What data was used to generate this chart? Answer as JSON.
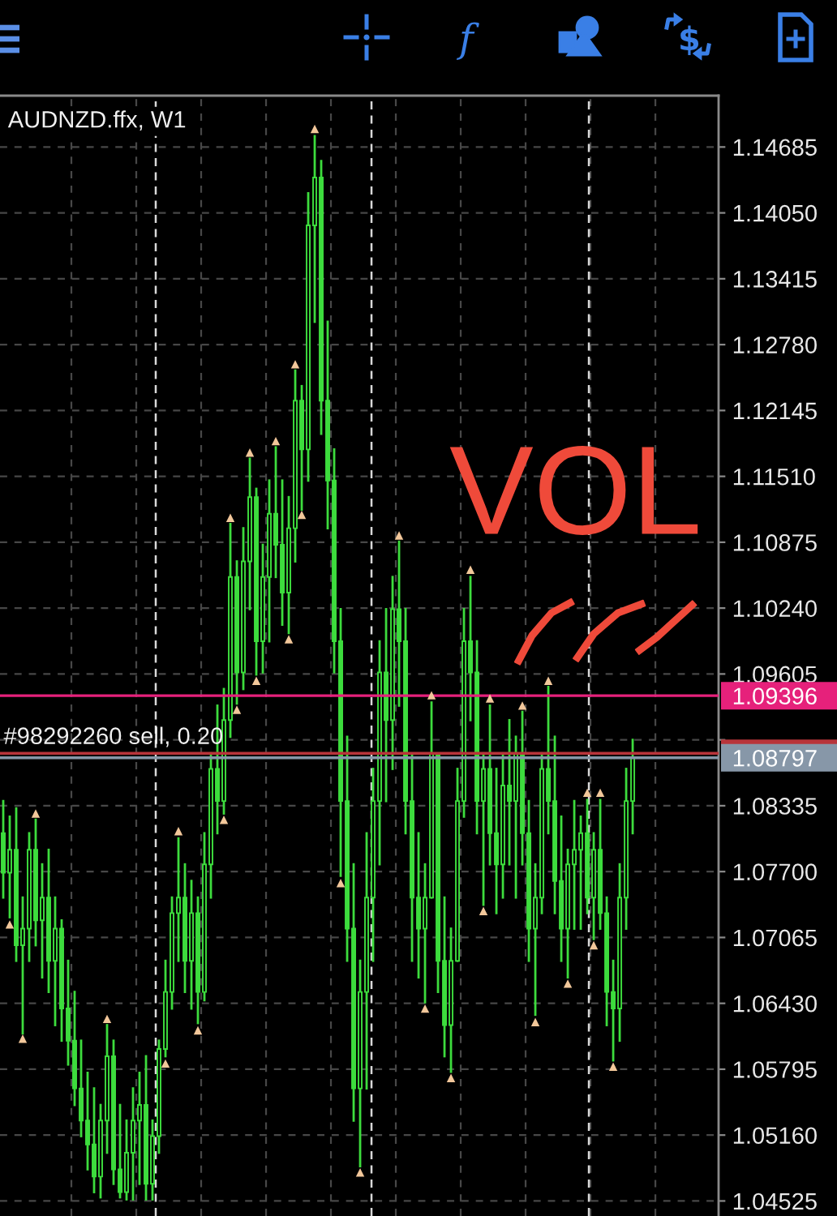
{
  "chart_data": {
    "type": "candlestick",
    "title": "AUDNZD.ffx, W1",
    "annotations": [
      "VOL"
    ],
    "categories": [
      null,
      null,
      null,
      null,
      null,
      null,
      null,
      null,
      null,
      null,
      null,
      null,
      null,
      null,
      null,
      null,
      null,
      null,
      null,
      null,
      null,
      null,
      null,
      null,
      null,
      null,
      null,
      null,
      null,
      null,
      null,
      null,
      null,
      null,
      null,
      null,
      null,
      null,
      null,
      null,
      null,
      null,
      null,
      null,
      null,
      null,
      null,
      null,
      null,
      null,
      null,
      null,
      null,
      null,
      null,
      null,
      null,
      null,
      null,
      null,
      null,
      null,
      null,
      null,
      null,
      null,
      null,
      null,
      null,
      null,
      null,
      null,
      null,
      null,
      null,
      null,
      null,
      null,
      null,
      null,
      null,
      null,
      null,
      null,
      null,
      null,
      null,
      null,
      null,
      null,
      null,
      null,
      null,
      null,
      null,
      null,
      null,
      null
    ],
    "ohlc": [
      [
        1.0807,
        1.0838,
        1.0745,
        1.0769
      ],
      [
        1.0769,
        1.0823,
        1.0726,
        1.0791
      ],
      [
        1.0791,
        1.0831,
        1.0684,
        1.0699
      ],
      [
        1.0699,
        1.0745,
        1.0614,
        1.0715
      ],
      [
        1.0715,
        1.0807,
        1.0684,
        1.0791
      ],
      [
        1.0791,
        1.082,
        1.0699,
        1.0723
      ],
      [
        1.0723,
        1.0777,
        1.0668,
        1.0745
      ],
      [
        1.0745,
        1.0791,
        1.0654,
        1.0684
      ],
      [
        1.0684,
        1.0745,
        1.0622,
        1.0715
      ],
      [
        1.0715,
        1.0723,
        1.0607,
        1.0638
      ],
      [
        1.0638,
        1.0684,
        1.0584,
        1.0607
      ],
      [
        1.0607,
        1.0654,
        1.0545,
        1.0561
      ],
      [
        1.0561,
        1.0607,
        1.0515,
        1.053
      ],
      [
        1.053,
        1.0576,
        1.0483,
        1.0507
      ],
      [
        1.0507,
        1.0561,
        1.0461,
        1.0476
      ],
      [
        1.0476,
        1.0545,
        1.0456,
        1.053
      ],
      [
        1.053,
        1.0622,
        1.0499,
        1.0592
      ],
      [
        1.0592,
        1.0607,
        1.0469,
        1.0483
      ],
      [
        1.0483,
        1.0545,
        1.0456,
        1.0461
      ],
      [
        1.0461,
        1.053,
        1.0454,
        1.0499
      ],
      [
        1.0499,
        1.0561,
        1.0454,
        1.053
      ],
      [
        1.053,
        1.0576,
        1.0469,
        1.0545
      ],
      [
        1.0545,
        1.0592,
        1.0454,
        1.0469
      ],
      [
        1.0469,
        1.053,
        1.0454,
        1.0515
      ],
      [
        1.0515,
        1.0607,
        1.0499,
        1.0599
      ],
      [
        1.0599,
        1.0684,
        1.0592,
        1.0654
      ],
      [
        1.0654,
        1.0745,
        1.0638,
        1.073
      ],
      [
        1.073,
        1.0802,
        1.0684,
        1.0745
      ],
      [
        1.0745,
        1.0777,
        1.0654,
        1.0684
      ],
      [
        1.0684,
        1.0761,
        1.0638,
        1.073
      ],
      [
        1.073,
        1.0745,
        1.0624,
        1.0654
      ],
      [
        1.0654,
        1.0807,
        1.0646,
        1.0777
      ],
      [
        1.0777,
        1.0884,
        1.0745,
        1.0869
      ],
      [
        1.0869,
        1.093,
        1.0807,
        1.0838
      ],
      [
        1.0838,
        1.0946,
        1.0826,
        1.0916
      ],
      [
        1.0916,
        1.1105,
        1.09,
        1.1054
      ],
      [
        1.1054,
        1.1069,
        1.0932,
        1.0962
      ],
      [
        1.0962,
        1.1101,
        1.0946,
        1.1069
      ],
      [
        1.1069,
        1.1168,
        1.1023,
        1.1131
      ],
      [
        1.1131,
        1.1139,
        1.096,
        1.0992
      ],
      [
        1.0992,
        1.1085,
        1.0962,
        1.1054
      ],
      [
        1.1054,
        1.1147,
        1.0992,
        1.1115
      ],
      [
        1.1115,
        1.1179,
        1.1054,
        1.1085
      ],
      [
        1.1085,
        1.1147,
        1.1008,
        1.1039
      ],
      [
        1.1039,
        1.1131,
        1.1,
        1.1101
      ],
      [
        1.1101,
        1.1253,
        1.1069,
        1.1224
      ],
      [
        1.1224,
        1.1238,
        1.1119,
        1.1177
      ],
      [
        1.1177,
        1.1424,
        1.1147,
        1.1393
      ],
      [
        1.1393,
        1.1479,
        1.13,
        1.1439
      ],
      [
        1.1439,
        1.1455,
        1.1192,
        1.1224
      ],
      [
        1.1224,
        1.13,
        1.1101,
        1.1147
      ],
      [
        1.1147,
        1.1177,
        1.0962,
        1.0992
      ],
      [
        1.0992,
        1.1023,
        1.0766,
        1.0838
      ],
      [
        1.0838,
        1.09,
        1.0684,
        1.0715
      ],
      [
        1.0715,
        1.0777,
        1.053,
        1.0561
      ],
      [
        1.0561,
        1.0684,
        1.0486,
        1.0654
      ],
      [
        1.0654,
        1.0807,
        1.0561,
        1.0745
      ],
      [
        1.0745,
        1.0869,
        1.0684,
        1.0838
      ],
      [
        1.0838,
        1.0992,
        1.0777,
        1.0962
      ],
      [
        1.0962,
        1.1023,
        1.0838,
        1.0916
      ],
      [
        1.0916,
        1.1054,
        1.0869,
        1.1023
      ],
      [
        1.1023,
        1.1088,
        1.093,
        1.0992
      ],
      [
        1.0992,
        1.1023,
        1.0807,
        1.0838
      ],
      [
        1.0838,
        1.0884,
        1.0684,
        1.0745
      ],
      [
        1.0745,
        1.0807,
        1.0668,
        1.0715
      ],
      [
        1.0715,
        1.0777,
        1.0644,
        1.0745
      ],
      [
        1.0745,
        1.0933,
        1.0745,
        1.0884
      ],
      [
        1.0884,
        1.0884,
        1.0654,
        1.0684
      ],
      [
        1.0684,
        1.0745,
        1.0592,
        1.0622
      ],
      [
        1.0622,
        1.0715,
        1.0577,
        1.0684
      ],
      [
        1.0684,
        1.0869,
        1.0684,
        1.0838
      ],
      [
        1.0838,
        1.1023,
        1.0823,
        1.0992
      ],
      [
        1.0992,
        1.1054,
        1.0916,
        1.0962
      ],
      [
        1.0962,
        1.0992,
        1.0807,
        1.0838
      ],
      [
        1.0838,
        1.0884,
        1.0738,
        1.0869
      ],
      [
        1.0869,
        1.093,
        1.0777,
        1.0807
      ],
      [
        1.0807,
        1.0869,
        1.073,
        1.0777
      ],
      [
        1.0777,
        1.0884,
        1.0745,
        1.0853
      ],
      [
        1.0853,
        1.0916,
        1.0777,
        1.0838
      ],
      [
        1.0838,
        1.09,
        1.0745,
        1.0884
      ],
      [
        1.0884,
        1.0924,
        1.0777,
        1.0807
      ],
      [
        1.0807,
        1.0838,
        1.0684,
        1.0715
      ],
      [
        1.0715,
        1.0777,
        1.0632,
        1.0745
      ],
      [
        1.0745,
        1.0884,
        1.073,
        1.0869
      ],
      [
        1.0869,
        1.0948,
        1.0807,
        1.0838
      ],
      [
        1.0838,
        1.09,
        1.073,
        1.0761
      ],
      [
        1.0761,
        1.0823,
        1.0684,
        1.0715
      ],
      [
        1.0715,
        1.0791,
        1.0668,
        1.0777
      ],
      [
        1.0777,
        1.0838,
        1.0715,
        1.0791
      ],
      [
        1.0791,
        1.0823,
        1.0715,
        1.0807
      ],
      [
        1.0807,
        1.0839,
        1.073,
        1.0745
      ],
      [
        1.0745,
        1.0807,
        1.0705,
        1.0791
      ],
      [
        1.0791,
        1.0839,
        1.0715,
        1.073
      ],
      [
        1.073,
        1.0745,
        1.0622,
        1.0654
      ],
      [
        1.0654,
        1.0684,
        1.0588,
        1.0638
      ],
      [
        1.0638,
        1.0777,
        1.0607,
        1.0745
      ],
      [
        1.0745,
        1.0869,
        1.0715,
        1.0838
      ],
      [
        1.0838,
        1.0897,
        1.0807,
        1.088
      ]
    ],
    "color": "#3ddc3d",
    "series": [
      {
        "type": "scatter",
        "color": "#f2c79a",
        "values": [
          null,
          null,
          null,
          null,
          null,
          1.0826,
          null,
          null,
          null,
          null,
          null,
          null,
          null,
          null,
          null,
          null,
          1.0628,
          null,
          null,
          null,
          null,
          null,
          null,
          null,
          null,
          null,
          null,
          1.0809,
          null,
          null,
          null,
          null,
          null,
          null,
          null,
          1.1111,
          null,
          null,
          1.1174,
          null,
          null,
          null,
          1.1185,
          null,
          null,
          1.1259,
          null,
          null,
          1.1486,
          null,
          null,
          null,
          null,
          null,
          null,
          null,
          null,
          null,
          null,
          null,
          null,
          1.1094,
          null,
          null,
          null,
          null,
          1.094,
          null,
          null,
          null,
          null,
          null,
          1.1061,
          null,
          null,
          1.0937,
          null,
          null,
          null,
          null,
          1.093,
          null,
          null,
          null,
          1.0954,
          null,
          null,
          null,
          null,
          null,
          1.0846,
          null,
          1.0846,
          null,
          null,
          null,
          null,
          null
        ]
      },
      {
        "type": "scatter",
        "color": "#f2c79a",
        "values": [
          null,
          1.0719,
          null,
          1.0609,
          null,
          null,
          null,
          null,
          null,
          null,
          null,
          null,
          null,
          null,
          null,
          null,
          null,
          null,
          null,
          null,
          null,
          null,
          null,
          null,
          null,
          1.0585,
          null,
          null,
          null,
          null,
          1.0617,
          null,
          null,
          null,
          1.082,
          null,
          1.0926,
          null,
          null,
          1.0954,
          null,
          null,
          null,
          null,
          1.0994,
          null,
          1.1114,
          null,
          null,
          null,
          null,
          null,
          1.0759,
          null,
          null,
          1.048,
          null,
          null,
          null,
          null,
          null,
          null,
          null,
          null,
          null,
          1.0638,
          null,
          null,
          null,
          1.0571,
          null,
          null,
          null,
          null,
          1.0732,
          null,
          null,
          null,
          null,
          null,
          null,
          null,
          1.0625,
          null,
          null,
          null,
          null,
          1.0662,
          null,
          null,
          null,
          1.0699,
          null,
          null,
          1.0582,
          null,
          null,
          null
        ]
      }
    ],
    "ylim": [
      1.0438,
      1.1518
    ],
    "yticks": [
      1.14685,
      {
        "value": 1.1405,
        "label": "1.14050"
      },
      1.13415,
      {
        "value": 1.1278,
        "label": "1.12780"
      },
      1.12145,
      {
        "value": 1.1151,
        "label": "1.11510"
      },
      1.10875,
      {
        "value": 1.1024,
        "label": "1.10240"
      },
      1.09605,
      {
        "value": 1.0897,
        "label": null
      },
      1.08335,
      {
        "value": 1.077,
        "label": "1.07700"
      },
      1.07065,
      {
        "value": 1.0643,
        "label": "1.06430"
      },
      1.05795,
      {
        "value": 1.0516,
        "label": "1.05160"
      },
      1.04525
    ],
    "ref_lines": [
      {
        "axis": "y",
        "value": 1.09396,
        "label": "1.09396",
        "color": "#e6217b"
      },
      {
        "axis": "y",
        "value": 1.0884,
        "label": "#98292260 sell, 0.20",
        "color": "#b8343a"
      },
      {
        "axis": "y",
        "value": 1.08797,
        "label": "1.08797",
        "color": "#8797a8"
      }
    ],
    "grid": true,
    "tick_labels": "y",
    "marker": "triangle"
  }
}
